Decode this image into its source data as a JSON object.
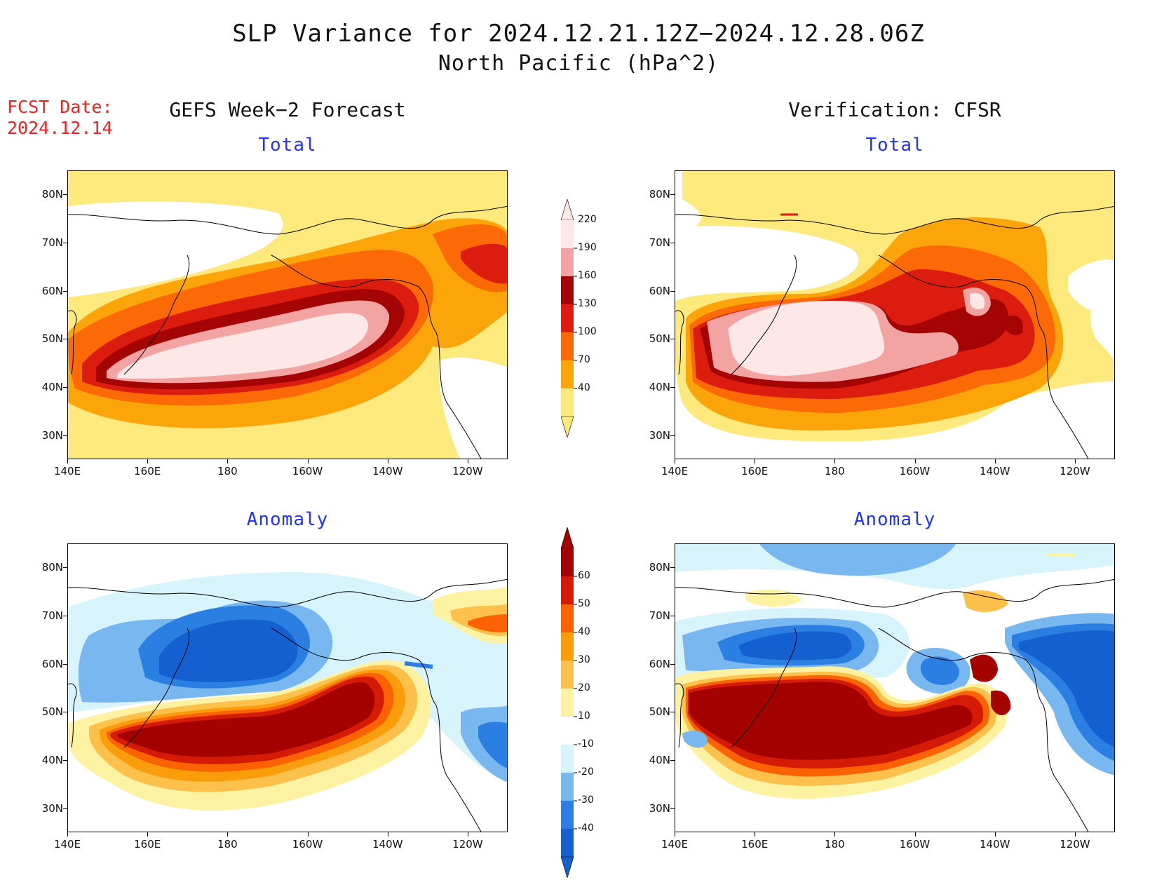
{
  "title_line1": "SLP Variance for 2024.12.21.12Z−2024.12.28.06Z",
  "title_line2": "North Pacific (hPa^2)",
  "fcst_label": "FCST Date:",
  "fcst_date": "2024.12.14",
  "left_column_title": "GEFS Week−2 Forecast",
  "right_column_title": "Verification: CFSR",
  "panels": {
    "forecast_total": {
      "subtitle": "Total"
    },
    "forecast_anomaly": {
      "subtitle": "Anomaly"
    },
    "verification_total": {
      "subtitle": "Total"
    },
    "verification_anomaly": {
      "subtitle": "Anomaly"
    }
  },
  "axes": {
    "lat_ticks": [
      "80N",
      "70N",
      "60N",
      "50N",
      "40N",
      "30N"
    ],
    "lat_values": [
      80,
      70,
      60,
      50,
      40,
      30
    ],
    "lat_range": [
      25,
      85
    ],
    "lon_ticks": [
      "140E",
      "160E",
      "180",
      "160W",
      "140W",
      "120W"
    ],
    "lon_values": [
      140,
      160,
      180,
      200,
      220,
      240
    ],
    "lon_range": [
      140,
      250
    ]
  },
  "total_colorbar": {
    "labels": [
      "40",
      "70",
      "100",
      "130",
      "160",
      "190",
      "220"
    ],
    "colors": [
      "#fde97c",
      "#fca50a",
      "#fb6a06",
      "#dd1c10",
      "#a50404",
      "#f4a3a3",
      "#fde7e7"
    ]
  },
  "anomaly_colorbar": {
    "labels": [
      "-40",
      "-30",
      "-20",
      "-10",
      "10",
      "20",
      "30",
      "40",
      "50",
      "60"
    ],
    "colors": [
      "#1560d0",
      "#2b7fe3",
      "#79b7f1",
      "#d7f3fc",
      "#ffffff",
      "#fdf1a2",
      "#fdc04a",
      "#fb9d0a",
      "#fb6203",
      "#d51b06",
      "#a40101"
    ]
  },
  "colors": {
    "title_red": "#ee2222",
    "subtitle_blue": "#2233ff"
  }
}
